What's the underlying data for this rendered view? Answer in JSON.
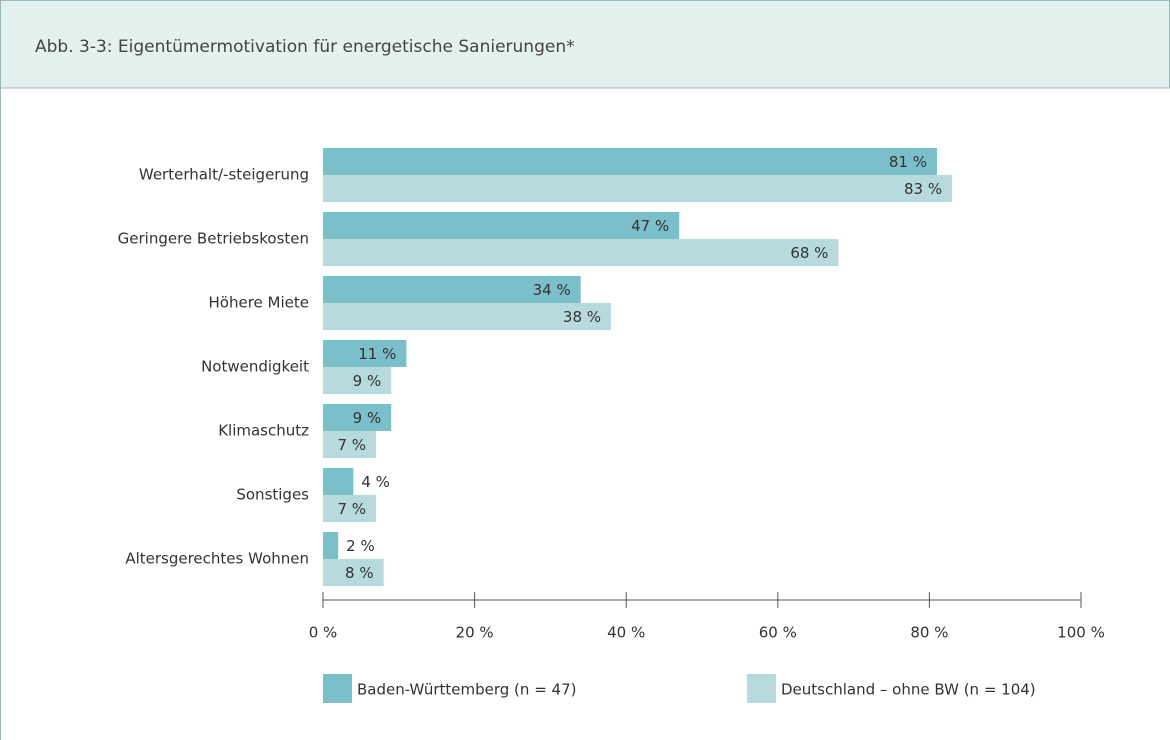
{
  "chart_data": {
    "type": "bar",
    "orientation": "horizontal",
    "title": "Abb. 3-3: Eigentümermotivation für energetische Sanierungen*",
    "categories": [
      "Werterhalt/-steigerung",
      "Geringere Betriebskosten",
      "Höhere Miete",
      "Notwendigkeit",
      "Klimaschutz",
      "Sonstiges",
      "Altersgerechtes Wohnen"
    ],
    "series": [
      {
        "name": "Baden-Württemberg (n = 47)",
        "color": "#7bbfca",
        "values": [
          81,
          47,
          34,
          11,
          9,
          4,
          2
        ],
        "value_labels": [
          "81 %",
          "47 %",
          "34 %",
          "11 %",
          "9 %",
          "4 %",
          "2 %"
        ]
      },
      {
        "name": "Deutschland – ohne BW (n = 104)",
        "color": "#b7dadd",
        "values": [
          83,
          68,
          38,
          9,
          7,
          7,
          8
        ],
        "value_labels": [
          "83 %",
          "68 %",
          "38 %",
          "9 %",
          "7 %",
          "7 %",
          "8 %"
        ]
      }
    ],
    "xlim": [
      0,
      100
    ],
    "xticks": [
      {
        "value": 0,
        "label": "0 %"
      },
      {
        "value": 20,
        "label": "20 %"
      },
      {
        "value": 40,
        "label": "40 %"
      },
      {
        "value": 60,
        "label": "60 %"
      },
      {
        "value": 80,
        "label": "80 %"
      },
      {
        "value": 100,
        "label": "100 %"
      }
    ],
    "grid": false,
    "legend": "bottom"
  }
}
